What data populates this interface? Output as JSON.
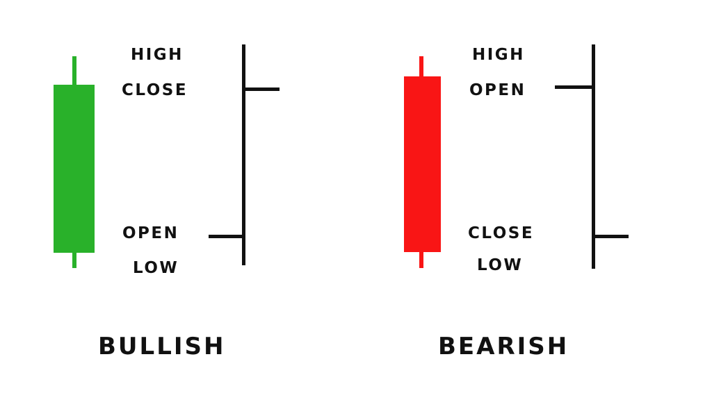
{
  "colors": {
    "bullish": "#29b12a",
    "bearish": "#f91515",
    "ink": "#111111"
  },
  "bullish": {
    "title": "BULLISH",
    "labels": {
      "high": "HIGH",
      "close": "CLOSE",
      "open": "OPEN",
      "low": "LOW"
    }
  },
  "bearish": {
    "title": "BEARISH",
    "labels": {
      "high": "HIGH",
      "open": "OPEN",
      "close": "CLOSE",
      "low": "LOW"
    }
  }
}
